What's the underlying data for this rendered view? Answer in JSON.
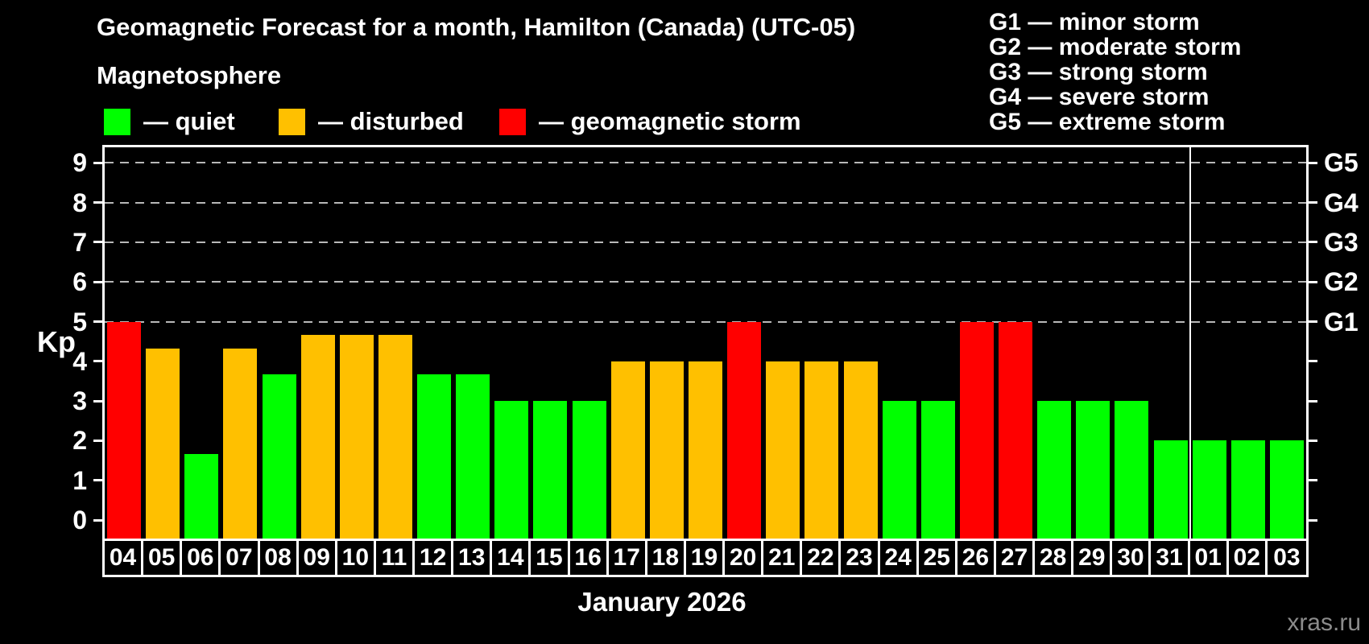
{
  "title": "Geomagnetic Forecast for a month, Hamilton (Canada) (UTC-05)",
  "legend": {
    "heading": "Magnetosphere",
    "items": [
      {
        "label": "— quiet",
        "color": "#00ff00",
        "status": "quiet"
      },
      {
        "label": "— disturbed",
        "color": "#ffc000",
        "status": "disturbed"
      },
      {
        "label": "— geomagnetic storm",
        "color": "#ff0000",
        "status": "storm"
      }
    ]
  },
  "g_legend": [
    "G1 — minor storm",
    "G2 — moderate storm",
    "G3 — strong storm",
    "G4 — severe storm",
    "G5 — extreme storm"
  ],
  "watermark": "xras.ru",
  "chart_data": {
    "type": "bar",
    "title": "Geomagnetic Forecast for a month, Hamilton (Canada) (UTC-05)",
    "xlabel": "January 2026",
    "ylabel": "Kp",
    "ylim": [
      0,
      9
    ],
    "y_ticks": [
      0,
      1,
      2,
      3,
      4,
      5,
      6,
      7,
      8,
      9
    ],
    "gridlines_kp": [
      5,
      6,
      7,
      8,
      9
    ],
    "right_axis_labels": [
      {
        "kp": 5,
        "text": "G1"
      },
      {
        "kp": 6,
        "text": "G2"
      },
      {
        "kp": 7,
        "text": "G3"
      },
      {
        "kp": 8,
        "text": "G4"
      },
      {
        "kp": 9,
        "text": "G5"
      }
    ],
    "categories": [
      "04",
      "05",
      "06",
      "07",
      "08",
      "09",
      "10",
      "11",
      "12",
      "13",
      "14",
      "15",
      "16",
      "17",
      "18",
      "19",
      "20",
      "21",
      "22",
      "23",
      "24",
      "25",
      "26",
      "27",
      "28",
      "29",
      "30",
      "31",
      "01",
      "02",
      "03"
    ],
    "values": [
      5,
      4.33,
      1.67,
      4.33,
      3.67,
      4.67,
      4.67,
      4.67,
      3.67,
      3.67,
      3,
      3,
      3,
      4,
      4,
      4,
      5,
      4,
      4,
      4,
      3,
      3,
      5,
      5,
      3,
      3,
      3,
      2,
      2,
      2,
      2
    ],
    "statuses": [
      "storm",
      "disturbed",
      "quiet",
      "disturbed",
      "quiet",
      "disturbed",
      "disturbed",
      "disturbed",
      "quiet",
      "quiet",
      "quiet",
      "quiet",
      "quiet",
      "disturbed",
      "disturbed",
      "disturbed",
      "storm",
      "disturbed",
      "disturbed",
      "disturbed",
      "quiet",
      "quiet",
      "storm",
      "storm",
      "quiet",
      "quiet",
      "quiet",
      "quiet",
      "quiet",
      "quiet",
      "quiet"
    ],
    "month_separator_after_index": 27,
    "colors": {
      "quiet": "#00ff00",
      "disturbed": "#ffc000",
      "storm": "#ff0000"
    }
  }
}
